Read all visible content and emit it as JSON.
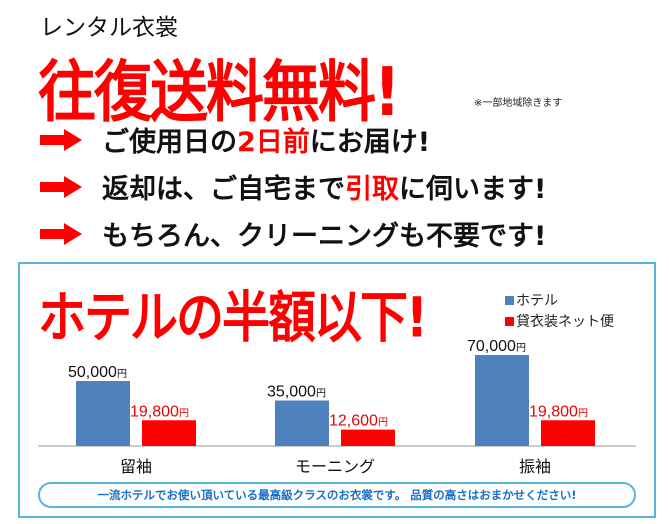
{
  "header": {
    "subtitle": "レンタル衣裳",
    "headline": "往復送料無料!",
    "note": "※一部地域除きます"
  },
  "points": [
    {
      "icon": "arrow-right-icon",
      "parts": [
        {
          "text": "ご使用日の",
          "red": false
        },
        {
          "text": "2日前",
          "red": true
        },
        {
          "text": "にお届け!",
          "red": false
        }
      ]
    },
    {
      "icon": "arrow-right-icon",
      "parts": [
        {
          "text": "返却は、ご自宅まで",
          "red": false
        },
        {
          "text": "引取",
          "red": true
        },
        {
          "text": "に伺います!",
          "red": false
        }
      ]
    },
    {
      "icon": "arrow-right-icon",
      "parts": [
        {
          "text": "もちろん、クリーニングも不要です!",
          "red": false
        }
      ]
    }
  ],
  "comparison": {
    "heading": "ホテルの半額以下!",
    "banner": "一流ホテルでお使い頂いている最高級クラスのお衣裳です。 品質の高さはおまかせください!"
  },
  "chart_data": {
    "type": "bar",
    "categories": [
      "留袖",
      "モーニング",
      "振袖"
    ],
    "series": [
      {
        "name": "ホテル",
        "values": [
          50000,
          35000,
          70000
        ],
        "labels": [
          "50,000円",
          "35,000円",
          "70,000円"
        ],
        "color": "#4f81bd"
      },
      {
        "name": "貸衣装ネット便",
        "values": [
          19800,
          12600,
          19800
        ],
        "labels": [
          "19,800円",
          "12,600円",
          "19,800円"
        ],
        "color": "#ff0000"
      }
    ],
    "legend": "top-right",
    "grid": false
  }
}
